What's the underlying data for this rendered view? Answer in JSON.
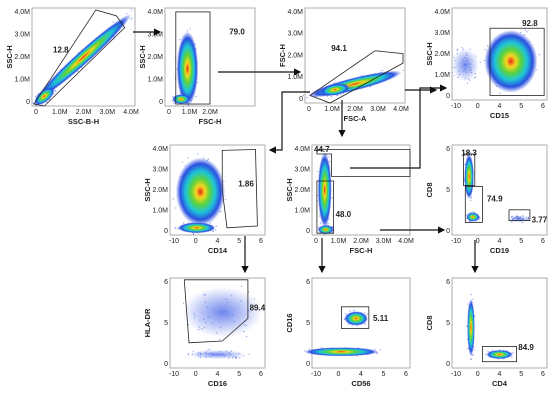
{
  "panels": [
    {
      "x_label": "SSC-B-H",
      "y_label": "SSC-H",
      "x_ticks": [
        "0",
        "1.0M",
        "2.0M",
        "3.0M",
        "4.0M"
      ],
      "y_ticks": [
        "0",
        "1.0M",
        "2.0M",
        "3.0M",
        "4.0M"
      ],
      "gates": [
        "12.8"
      ]
    },
    {
      "x_label": "FSC-H",
      "y_label": "SSC-H",
      "x_ticks": [
        "0",
        "1.0M",
        "2.0M"
      ],
      "y_ticks": [
        "0",
        "1.0M",
        "2.0M",
        "3.0M",
        "4.0M"
      ],
      "gates": [
        "79.0"
      ]
    },
    {
      "x_label": "FSC-A",
      "y_label": "FSC-H",
      "x_ticks": [
        "0",
        "1.0M",
        "2.0M",
        "3.0M",
        "4.0M"
      ],
      "y_ticks": [
        "0",
        "1.0M",
        "2.0M",
        "3.0M",
        "4.0M"
      ],
      "gates": [
        "94.1"
      ]
    },
    {
      "x_label": "CD15",
      "y_label": "SSC-H",
      "x_ticks": [
        "-10",
        "0",
        "4",
        "5",
        "6"
      ],
      "y_ticks": [
        "0",
        "1.0M",
        "2.0M",
        "3.0M",
        "4.0M"
      ],
      "gates": [
        "92.8"
      ]
    },
    {
      "x_label": "CD14",
      "y_label": "SSC-H",
      "x_ticks": [
        "-10",
        "0",
        "4",
        "5",
        "6"
      ],
      "y_ticks": [
        "0",
        "1.0M",
        "2.0M",
        "3.0M",
        "4.0M"
      ],
      "gates": [
        "1.86"
      ]
    },
    {
      "x_label": "FSC-H",
      "y_label": "SSC-H",
      "x_ticks": [
        "0",
        "1.0M",
        "2.0M",
        "3.0M",
        "4.0M"
      ],
      "y_ticks": [
        "0",
        "1.0M",
        "2.0M",
        "3.0M",
        "4.0M"
      ],
      "gates": [
        "44.7",
        "48.0"
      ]
    },
    {
      "x_label": "CD19",
      "y_label": "CD8",
      "x_ticks": [
        "-10",
        "0",
        "4",
        "5",
        "6"
      ],
      "y_ticks": [
        "0",
        "5",
        "6"
      ],
      "gates": [
        "18.3",
        "74.9",
        "3.77"
      ]
    },
    {
      "x_label": "CD16",
      "y_label": "HLA-DR",
      "x_ticks": [
        "-10",
        "0",
        "4",
        "5",
        "6"
      ],
      "y_ticks": [
        "0",
        "5",
        "6"
      ],
      "gates": [
        "89.4"
      ]
    },
    {
      "x_label": "CD56",
      "y_label": "CD16",
      "x_ticks": [
        "-10",
        "0",
        "4",
        "5",
        "6"
      ],
      "y_ticks": [
        "0",
        "5",
        "6"
      ],
      "gates": [
        "5.11"
      ]
    },
    {
      "x_label": "CD4",
      "y_label": "CD8",
      "x_ticks": [
        "-10",
        "0",
        "4",
        "5",
        "6"
      ],
      "y_ticks": [
        "0",
        "5",
        "6"
      ],
      "gates": [
        "84.9"
      ]
    }
  ]
}
